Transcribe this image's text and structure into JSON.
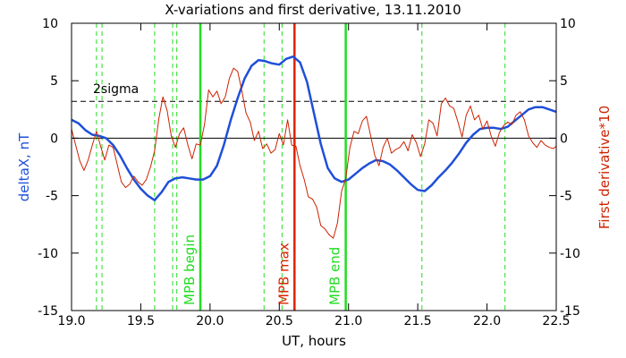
{
  "chart_data": {
    "type": "line",
    "title": "X-variations and first derivative, 13.11.2010",
    "xlabel": "UT, hours",
    "ylabel_left": "deltaX, nT",
    "ylabel_right": "First derivative*10",
    "xlim": [
      19.0,
      22.5
    ],
    "ylim_left": [
      -15,
      10
    ],
    "ylim_right": [
      -15,
      10
    ],
    "x_ticks": [
      "19.0",
      "19.5",
      "20.0",
      "20.5",
      "21.0",
      "21.5",
      "22.0",
      "22.5"
    ],
    "y_ticks": [
      "10",
      "5",
      "0",
      "-5",
      "-10",
      "-15"
    ],
    "colors": {
      "deltaX": "#1f4fd8",
      "derivative": "#cc2200",
      "mpb_boundary": "#22dd22",
      "mpb_max": "#dd2200",
      "dashed_markers": "#22dd22",
      "axes": "#000000"
    },
    "threshold": {
      "label": "2sigma",
      "value": 3.2
    },
    "vertical_markers": [
      {
        "x": 19.93,
        "label": "MPB begin",
        "color": "#22dd22"
      },
      {
        "x": 20.61,
        "label": "MPB max",
        "color": "#dd2200"
      },
      {
        "x": 20.98,
        "label": "MPB end",
        "color": "#22dd22"
      }
    ],
    "dashed_verticals": [
      19.18,
      19.22,
      19.6,
      19.73,
      19.76,
      20.39,
      20.52,
      21.53,
      22.13
    ],
    "series": [
      {
        "name": "deltaX, nT",
        "axis": "left",
        "x": [
          19.0,
          19.05,
          19.1,
          19.15,
          19.2,
          19.25,
          19.3,
          19.35,
          19.4,
          19.45,
          19.5,
          19.55,
          19.6,
          19.65,
          19.7,
          19.75,
          19.8,
          19.85,
          19.9,
          19.95,
          20.0,
          20.05,
          20.1,
          20.15,
          20.2,
          20.25,
          20.3,
          20.35,
          20.4,
          20.45,
          20.5,
          20.55,
          20.6,
          20.65,
          20.7,
          20.75,
          20.8,
          20.85,
          20.9,
          20.95,
          21.0,
          21.05,
          21.1,
          21.15,
          21.2,
          21.25,
          21.3,
          21.35,
          21.4,
          21.45,
          21.5,
          21.55,
          21.6,
          21.65,
          21.7,
          21.75,
          21.8,
          21.85,
          21.9,
          21.95,
          22.0,
          22.05,
          22.1,
          22.15,
          22.2,
          22.25,
          22.3,
          22.35,
          22.4,
          22.45,
          22.5
        ],
        "y": [
          1.6,
          1.3,
          0.7,
          0.3,
          0.2,
          0.0,
          -0.6,
          -1.5,
          -2.6,
          -3.6,
          -4.4,
          -5.0,
          -5.4,
          -4.7,
          -3.8,
          -3.5,
          -3.4,
          -3.5,
          -3.6,
          -3.6,
          -3.3,
          -2.4,
          -0.6,
          1.6,
          3.5,
          5.2,
          6.3,
          6.8,
          6.7,
          6.5,
          6.4,
          6.9,
          7.1,
          6.6,
          4.9,
          2.2,
          -0.5,
          -2.6,
          -3.5,
          -3.8,
          -3.6,
          -3.1,
          -2.6,
          -2.2,
          -1.9,
          -2.0,
          -2.3,
          -2.8,
          -3.4,
          -4.0,
          -4.5,
          -4.6,
          -4.1,
          -3.4,
          -2.8,
          -2.1,
          -1.3,
          -0.4,
          0.3,
          0.8,
          0.9,
          0.9,
          0.8,
          1.0,
          1.5,
          2.0,
          2.5,
          2.7,
          2.7,
          2.5,
          2.3
        ]
      },
      {
        "name": "First derivative*10",
        "axis": "right",
        "x": [
          19.0,
          19.03,
          19.06,
          19.09,
          19.12,
          19.15,
          19.18,
          19.21,
          19.24,
          19.27,
          19.3,
          19.33,
          19.36,
          19.39,
          19.42,
          19.45,
          19.48,
          19.51,
          19.54,
          19.57,
          19.6,
          19.63,
          19.66,
          19.69,
          19.72,
          19.75,
          19.78,
          19.81,
          19.84,
          19.87,
          19.9,
          19.93,
          19.96,
          19.99,
          20.02,
          20.05,
          20.08,
          20.11,
          20.14,
          20.17,
          20.2,
          20.23,
          20.26,
          20.29,
          20.32,
          20.35,
          20.38,
          20.41,
          20.44,
          20.47,
          20.5,
          20.53,
          20.56,
          20.59,
          20.62,
          20.65,
          20.68,
          20.71,
          20.74,
          20.77,
          20.8,
          20.83,
          20.86,
          20.89,
          20.92,
          20.95,
          20.98,
          21.01,
          21.04,
          21.07,
          21.1,
          21.13,
          21.16,
          21.19,
          21.22,
          21.25,
          21.28,
          21.31,
          21.34,
          21.37,
          21.4,
          21.43,
          21.46,
          21.49,
          21.52,
          21.55,
          21.58,
          21.61,
          21.64,
          21.67,
          21.7,
          21.73,
          21.76,
          21.79,
          21.82,
          21.85,
          21.88,
          21.91,
          21.94,
          21.97,
          22.0,
          22.03,
          22.06,
          22.09,
          22.12,
          22.15,
          22.18,
          22.21,
          22.24,
          22.27,
          22.3,
          22.33,
          22.36,
          22.39,
          22.42,
          22.45,
          22.48,
          22.5
        ],
        "y": [
          0.8,
          -0.6,
          -2.0,
          -2.8,
          -1.9,
          -0.6,
          0.6,
          -0.7,
          -1.9,
          -0.6,
          -0.8,
          -2.3,
          -3.8,
          -4.3,
          -4.0,
          -3.3,
          -3.8,
          -4.1,
          -3.6,
          -2.5,
          -1.1,
          1.7,
          3.6,
          2.4,
          0.2,
          -0.8,
          0.4,
          0.9,
          -0.6,
          -1.8,
          -0.5,
          -0.6,
          1.2,
          4.2,
          3.6,
          4.1,
          3.0,
          3.6,
          5.2,
          6.1,
          5.8,
          4.1,
          2.2,
          1.4,
          -0.2,
          0.6,
          -0.9,
          -0.5,
          -1.3,
          -1.0,
          0.4,
          -0.6,
          1.6,
          -0.6,
          -0.7,
          -2.4,
          -3.6,
          -5.1,
          -5.3,
          -6.0,
          -7.6,
          -7.9,
          -8.4,
          -8.7,
          -7.4,
          -4.6,
          -3.5,
          -0.8,
          0.6,
          0.4,
          1.5,
          1.9,
          0.2,
          -1.5,
          -2.4,
          -0.8,
          0.0,
          -1.3,
          -1.0,
          -0.8,
          -0.3,
          -1.1,
          0.3,
          -0.4,
          -1.6,
          -0.5,
          1.6,
          1.3,
          0.2,
          3.0,
          3.5,
          2.8,
          2.6,
          1.4,
          0.1,
          2.0,
          2.8,
          1.6,
          2.0,
          0.8,
          1.5,
          0.2,
          -0.7,
          0.5,
          1.1,
          1.4,
          1.2,
          2.0,
          2.3,
          1.6,
          0.2,
          -0.4,
          -0.8,
          -0.2,
          -0.6,
          -0.8,
          -0.9,
          -0.7
        ]
      }
    ]
  }
}
